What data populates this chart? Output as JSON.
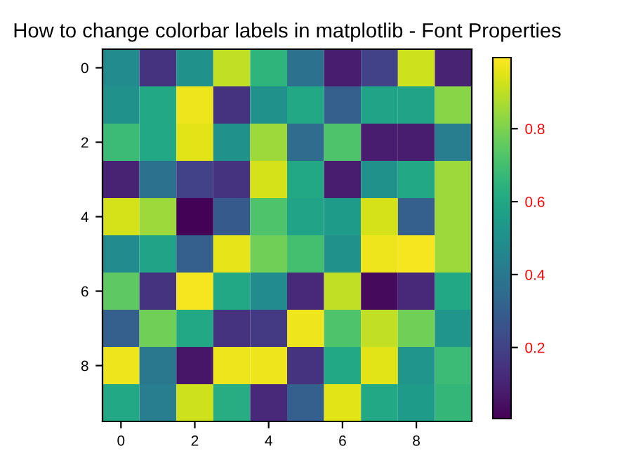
{
  "chart_data": {
    "type": "heatmap",
    "title": "How to change colorbar labels in matplotlib - Font Properties",
    "categories": [
      "0",
      null,
      "2",
      null,
      "4",
      null,
      "6",
      null,
      "8",
      null
    ],
    "y_categories": [
      "0",
      null,
      "2",
      null,
      "4",
      null,
      "6",
      null,
      "8",
      null
    ],
    "cells": [
      [
        0.48,
        0.15,
        0.5,
        0.9,
        0.65,
        0.38,
        0.08,
        0.2,
        0.92,
        0.1
      ],
      [
        0.5,
        0.6,
        0.97,
        0.15,
        0.5,
        0.6,
        0.3,
        0.58,
        0.58,
        0.82
      ],
      [
        0.68,
        0.6,
        0.95,
        0.5,
        0.85,
        0.35,
        0.72,
        0.08,
        0.08,
        0.42
      ],
      [
        0.1,
        0.38,
        0.2,
        0.15,
        0.93,
        0.6,
        0.08,
        0.5,
        0.6,
        0.85
      ],
      [
        0.93,
        0.85,
        0.01,
        0.28,
        0.72,
        0.58,
        0.55,
        0.93,
        0.3,
        0.85
      ],
      [
        0.48,
        0.58,
        0.3,
        0.96,
        0.78,
        0.7,
        0.5,
        0.97,
        0.98,
        0.85
      ],
      [
        0.75,
        0.15,
        0.98,
        0.6,
        0.48,
        0.12,
        0.9,
        0.03,
        0.12,
        0.6
      ],
      [
        0.3,
        0.78,
        0.6,
        0.15,
        0.17,
        0.97,
        0.72,
        0.9,
        0.78,
        0.52
      ],
      [
        0.97,
        0.4,
        0.06,
        0.97,
        0.97,
        0.15,
        0.6,
        0.95,
        0.52,
        0.68
      ],
      [
        0.6,
        0.42,
        0.92,
        0.62,
        0.12,
        0.3,
        0.95,
        0.6,
        0.55,
        0.66
      ]
    ],
    "clim": [
      0.005,
      0.995
    ],
    "cticks": [
      0.2,
      0.4,
      0.6,
      0.8
    ]
  }
}
